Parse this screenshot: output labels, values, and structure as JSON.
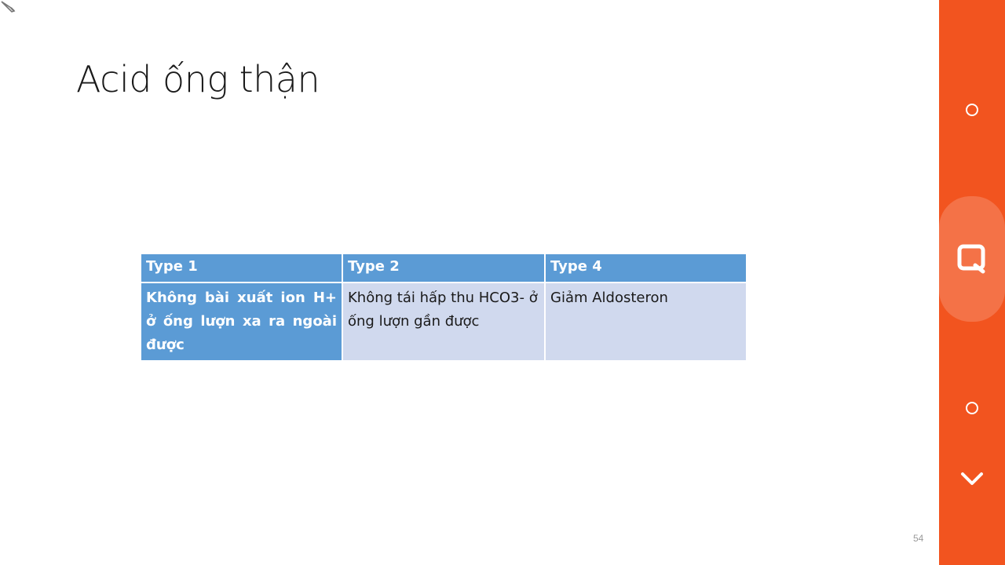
{
  "slide": {
    "title": "Acid ống thận",
    "page_number": "54"
  },
  "table": {
    "headers": [
      "Type 1",
      "Type 2",
      "Type 4"
    ],
    "rows": [
      [
        "Không bài xuất ion H+ ở ống lượn xa ra ngoài được",
        "Không tái hấp thu HCO3- ở ống lượn gần được",
        "Giảm Aldosteron"
      ]
    ]
  },
  "side_panel": {
    "color": "#f2541f",
    "buttons": [
      "circle-icon",
      "search-icon",
      "circle-icon",
      "chevron-down-icon"
    ]
  },
  "colors": {
    "header_fill": "#5b9bd5",
    "cell_fill": "#d0d9ee"
  }
}
